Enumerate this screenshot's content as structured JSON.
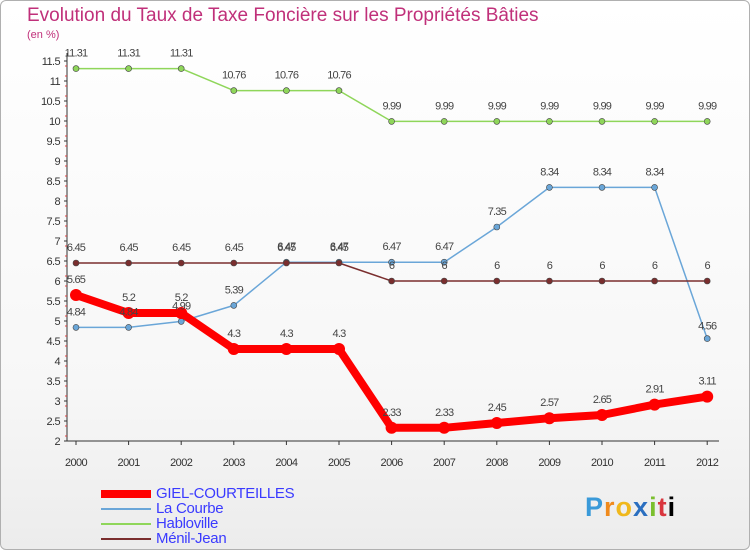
{
  "title": "Evolution du Taux de Taxe Foncière sur les Propriétés Bâties",
  "subtitle": "(en %)",
  "logo_text": "Proxiti",
  "chart_data": {
    "type": "line",
    "title": "Evolution du Taux de Taxe Foncière sur les Propriétés Bâties",
    "ylabel": "(en %)",
    "xlabel": "",
    "ylim": [
      2,
      11.5
    ],
    "ytick_step": 0.5,
    "grid": false,
    "legend_position": "bottom-left",
    "categories": [
      "2000",
      "2001",
      "2002",
      "2003",
      "2004",
      "2005",
      "2006",
      "2007",
      "2008",
      "2009",
      "2010",
      "2011",
      "2012"
    ],
    "series": [
      {
        "name": "GIEL-COURTEILLES",
        "color": "#ff0000",
        "label_color": "#3a3aff",
        "values": [
          5.65,
          5.2,
          5.2,
          4.3,
          4.3,
          4.3,
          2.33,
          2.33,
          2.45,
          2.57,
          2.65,
          2.91,
          3.11
        ],
        "labels": [
          "5.65",
          "5.2",
          "5.2",
          "4.3",
          "4.3",
          "4.3",
          "2.33",
          "2.33",
          "2.45",
          "2.57",
          "2.65",
          "2.91",
          "3.11"
        ]
      },
      {
        "name": "La Courbe",
        "color": "#6aa6d8",
        "label_color": "#6aa6d8",
        "values": [
          4.84,
          4.84,
          4.99,
          5.39,
          6.47,
          6.47,
          6.47,
          6.47,
          7.35,
          8.34,
          8.34,
          8.34,
          4.56
        ],
        "labels": [
          "4.84",
          "4.84",
          "4.99",
          "5.39",
          "6.47",
          "6.47",
          "6.47",
          "6.47",
          "7.35",
          "8.34",
          "8.34",
          "8.34",
          "4.56"
        ]
      },
      {
        "name": "Habloville",
        "color": "#8fd65a",
        "label_color": "#8fd65a",
        "values": [
          11.31,
          11.31,
          11.31,
          10.76,
          10.76,
          10.76,
          9.99,
          9.99,
          9.99,
          9.99,
          9.99,
          9.99,
          9.99
        ],
        "labels": [
          "11.31",
          "11.31",
          "11.31",
          "10.76",
          "10.76",
          "10.76",
          "9.99",
          "9.99",
          "9.99",
          "9.99",
          "9.99",
          "9.99",
          "9.99"
        ]
      },
      {
        "name": "Ménil-Jean",
        "color": "#7a2e2e",
        "label_color": "#7a2e2e",
        "values": [
          6.45,
          6.45,
          6.45,
          6.45,
          6.45,
          6.45,
          6,
          6,
          6,
          6,
          6,
          6,
          6
        ],
        "labels": [
          "6.45",
          "6.45",
          "6.45",
          "6.45",
          "6.45",
          "6.45",
          "6",
          "6",
          "6",
          "6",
          "6",
          "6",
          "6"
        ]
      }
    ]
  }
}
